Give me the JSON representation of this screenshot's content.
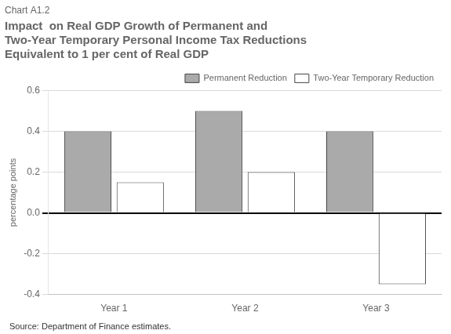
{
  "chart_data": {
    "type": "bar",
    "subtitle": "Chart A1.2",
    "title": [
      "Impact  on Real GDP Growth of Permanent and",
      "Two-Year Temporary Personal Income Tax Reductions",
      "Equivalent to 1 per cent of Real GDP"
    ],
    "ylabel": "percentage points",
    "annotations": [
      "Source: Department of Finance estimates."
    ],
    "categories": [
      "Year 1",
      "Year 2",
      "Year 3"
    ],
    "series": [
      {
        "name": "Permanent Reduction",
        "color": "#aaaaaa",
        "values": [
          0.4,
          0.5,
          0.4
        ]
      },
      {
        "name": "Two-Year Temporary Reduction",
        "color": "#ffffff",
        "values": [
          0.15,
          0.2,
          -0.35
        ]
      }
    ],
    "ylim": [
      -0.4,
      0.6
    ],
    "yticks": [
      -0.4,
      -0.2,
      {
        "value": 0,
        "label": "0.0"
      },
      0.2,
      0.4,
      0.6
    ],
    "grid": true,
    "legend": "upper right"
  }
}
